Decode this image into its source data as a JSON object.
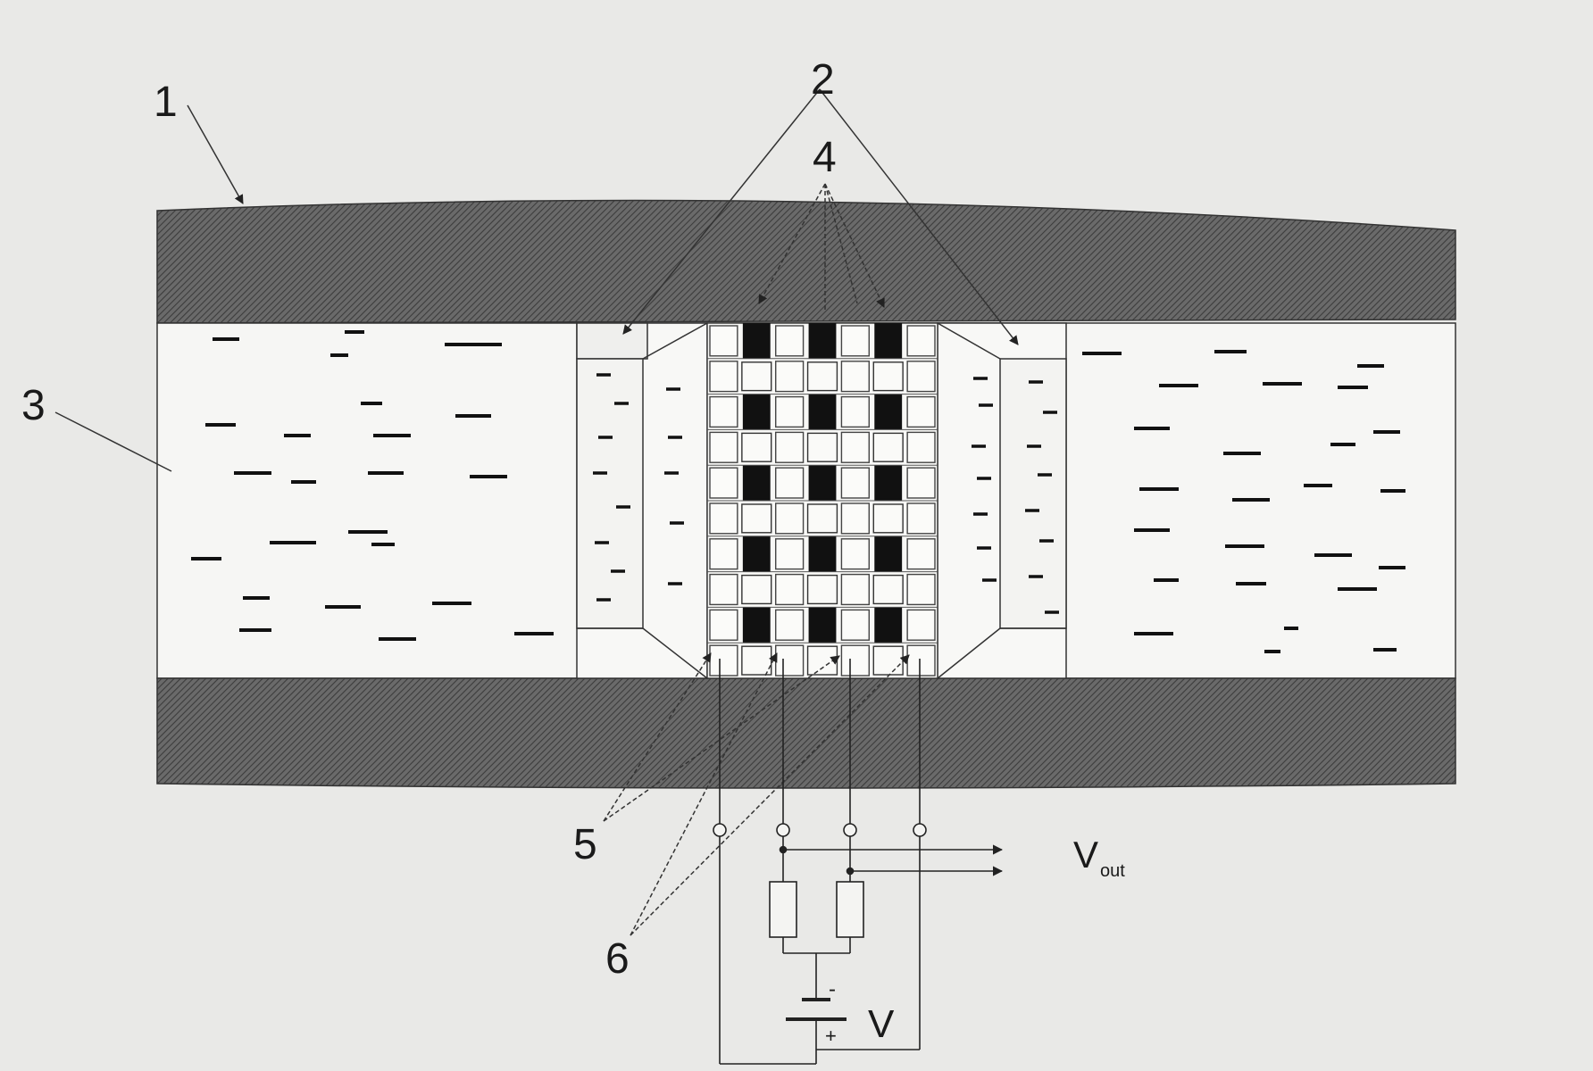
{
  "figure": {
    "callouts": [
      {
        "id": "layer-top",
        "text": "1"
      },
      {
        "id": "pads-top",
        "text": "2"
      },
      {
        "id": "elements",
        "text": "4"
      },
      {
        "id": "filler",
        "text": "3"
      },
      {
        "id": "contacts",
        "text": "5"
      },
      {
        "id": "wires",
        "text": "6"
      }
    ],
    "output_label": "V",
    "output_subscript": "out",
    "supply_label": "V",
    "battery_minus": "-",
    "battery_plus": "+"
  },
  "colors": {
    "background": "#e9e9e7",
    "hatched_band": "#5c5c5c",
    "panel": "#f7f7f5",
    "line": "#222222",
    "dark_cell": "#111111"
  }
}
